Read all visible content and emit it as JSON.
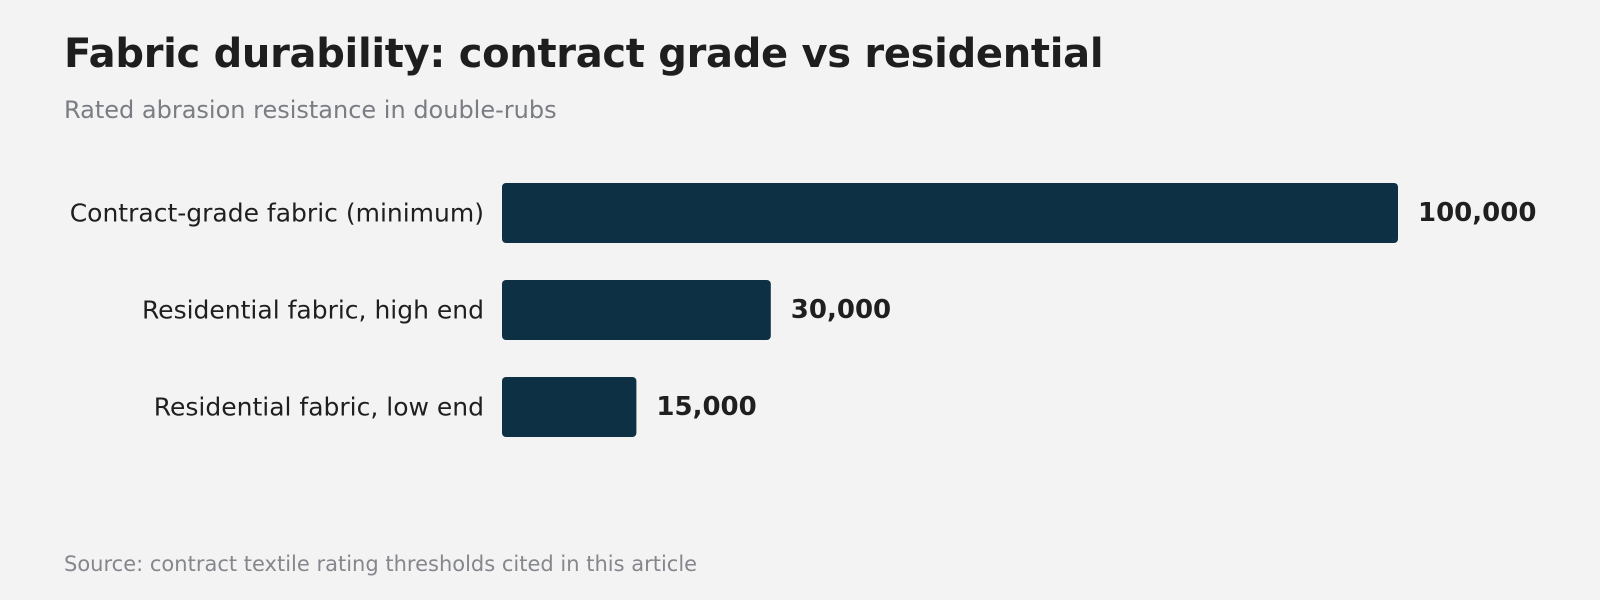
{
  "title": "Fabric durability: contract grade vs residential",
  "subtitle": "Rated abrasion resistance in double-rubs",
  "source": "Source: contract textile rating thresholds cited in this article",
  "colors": {
    "bar": "#0d3045",
    "background": "#f3f3f3",
    "label_text": "#1f1f1f",
    "muted_text": "#7b7d84"
  },
  "chart_data": {
    "type": "bar",
    "orientation": "horizontal",
    "title": "Fabric durability: contract grade vs residential",
    "subtitle": "Rated abrasion resistance in double-rubs",
    "categories": [
      "Contract-grade fabric (minimum)",
      "Residential fabric, high end",
      "Residential fabric, low end"
    ],
    "values": [
      100000,
      30000,
      15000
    ],
    "value_labels": [
      "100,000",
      "30,000",
      "15,000"
    ],
    "xlim": [
      0,
      100000
    ],
    "grid": false
  }
}
